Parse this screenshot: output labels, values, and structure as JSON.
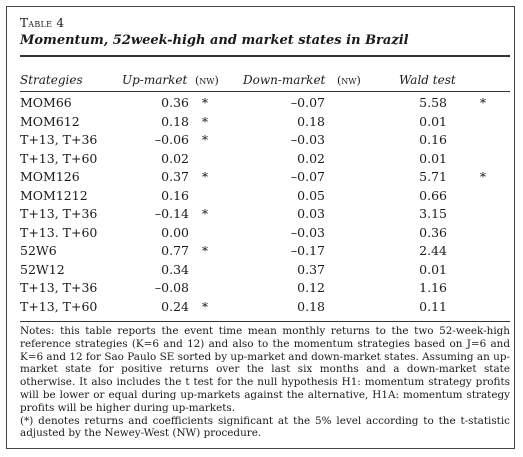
{
  "caption": "Table 4",
  "title": "Momentum, 52week-high and market states in Brazil",
  "headers": {
    "strategies": "Strategies",
    "up_market": "Up-market",
    "nw1": "(nw)",
    "down_market": "Down-market",
    "nw2": "(nw)",
    "wald": "Wald test"
  },
  "rows": [
    {
      "strategy": "MOM66",
      "up": "0.36",
      "nw1": "*",
      "down": "–0.07",
      "nw2": "",
      "wald": "5.58",
      "nw3": "*"
    },
    {
      "strategy": "MOM612",
      "up": "0.18",
      "nw1": "*",
      "down": "0.18",
      "nw2": "",
      "wald": "0.01",
      "nw3": ""
    },
    {
      "strategy": "T+13, T+36",
      "up": "–0.06",
      "nw1": "*",
      "down": "–0.03",
      "nw2": "",
      "wald": "0.16",
      "nw3": ""
    },
    {
      "strategy": "T+13, T+60",
      "up": "0.02",
      "nw1": "",
      "down": "0.02",
      "nw2": "",
      "wald": "0.01",
      "nw3": ""
    },
    {
      "strategy": "MOM126",
      "up": "0.37",
      "nw1": "*",
      "down": "–0.07",
      "nw2": "",
      "wald": "5.71",
      "nw3": "*"
    },
    {
      "strategy": "MOM1212",
      "up": "0.16",
      "nw1": "",
      "down": "0.05",
      "nw2": "",
      "wald": "0.66",
      "nw3": ""
    },
    {
      "strategy": "T+13, T+36",
      "up": "–0.14",
      "nw1": "*",
      "down": "0.03",
      "nw2": "",
      "wald": "3.15",
      "nw3": ""
    },
    {
      "strategy": "T+13. T+60",
      "up": "0.00",
      "nw1": "",
      "down": "–0.03",
      "nw2": "",
      "wald": "0.36",
      "nw3": ""
    },
    {
      "strategy": "52W6",
      "up": "0.77",
      "nw1": "*",
      "down": "–0.17",
      "nw2": "",
      "wald": "2.44",
      "nw3": ""
    },
    {
      "strategy": "52W12",
      "up": "0.34",
      "nw1": "",
      "down": "0.37",
      "nw2": "",
      "wald": "0.01",
      "nw3": ""
    },
    {
      "strategy": "T+13, T+36",
      "up": "–0.08",
      "nw1": "",
      "down": "0.12",
      "nw2": "",
      "wald": "1.16",
      "nw3": ""
    },
    {
      "strategy": "T+13, T+60",
      "up": "0.24",
      "nw1": "*",
      "down": "0.18",
      "nw2": "",
      "wald": "0.11",
      "nw3": ""
    }
  ],
  "notes": {
    "p1": "Notes: this table reports the event time mean monthly returns to the two 52-week-high reference strategies (K=6 and 12) and also to the momentum strategies based on J=6 and K=6 and 12 for Sao Paulo SE sorted by up-market and down-market states. Assuming an up-market state for positive returns over the last six months and a down-market state otherwise. It also includes the t test for the null hypothesis H1: momentum strategy profits will be lower or equal during up-markets against the alternative, H1A: momentum strategy profits will be higher during up-markets.",
    "p2": "(*) denotes returns and coefficients significant at the 5% level according to the t-statistic adjusted by the Newey-West (NW) procedure."
  }
}
